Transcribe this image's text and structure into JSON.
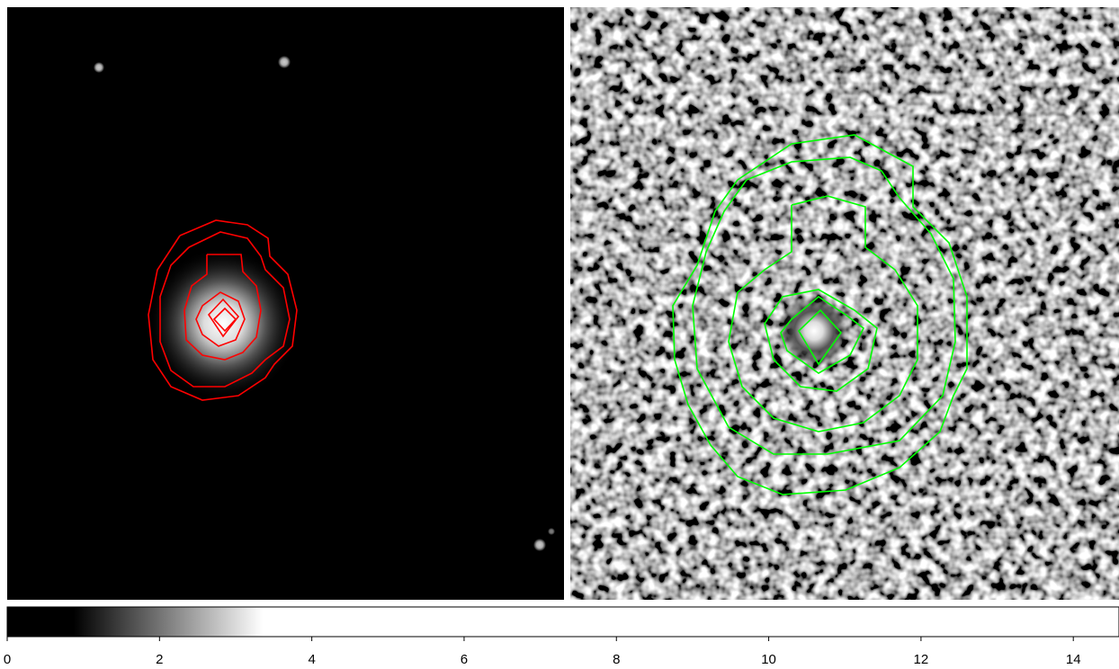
{
  "colorbar": {
    "xlim": [
      0,
      14.6
    ],
    "ticks": [
      0,
      2,
      4,
      6,
      8,
      10,
      12,
      14
    ]
  }
}
